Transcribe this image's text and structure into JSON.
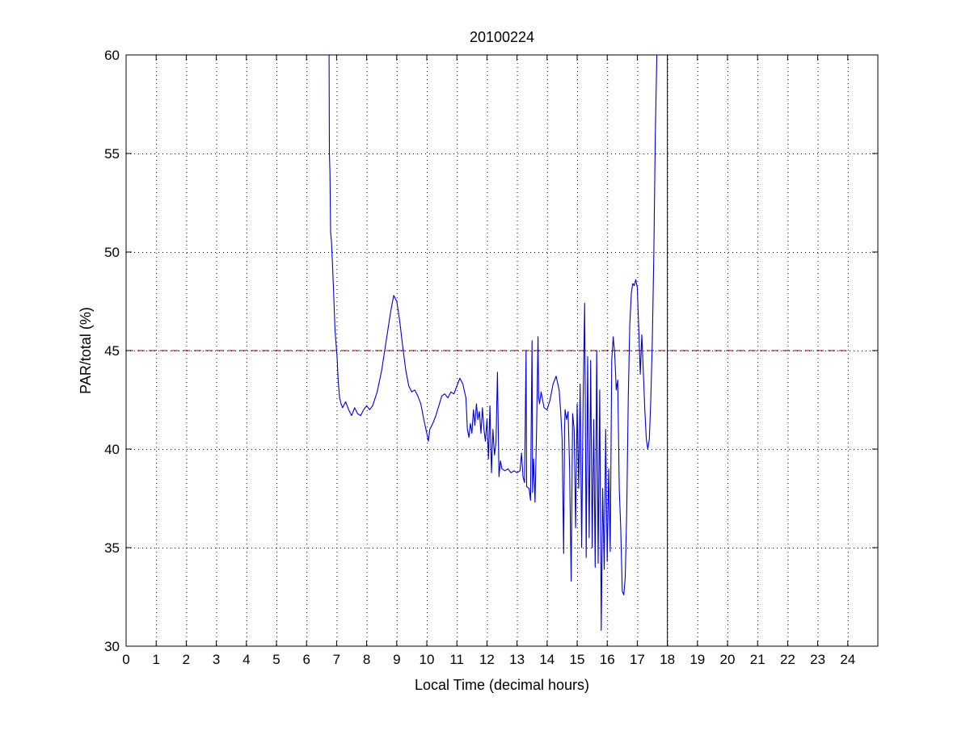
{
  "chart_data": {
    "type": "line",
    "title": "20100224",
    "xlabel": "Local Time (decimal hours)",
    "ylabel": "PAR/total (%)",
    "xlim": [
      0,
      25
    ],
    "ylim": [
      30,
      60
    ],
    "xticks": [
      0,
      1,
      2,
      3,
      4,
      5,
      6,
      7,
      8,
      9,
      10,
      11,
      12,
      13,
      14,
      15,
      16,
      17,
      18,
      19,
      20,
      21,
      22,
      23,
      24
    ],
    "yticks": [
      30,
      35,
      40,
      45,
      50,
      55,
      60
    ],
    "grid": true,
    "grid_style": "dotted",
    "reference_line": {
      "y": 45,
      "x_range": [
        0,
        24
      ],
      "color": "#a00000",
      "style": "dashed"
    },
    "colors": {
      "series": "#0000d0",
      "reference": "#a00000",
      "axes": "#000000",
      "grid": "#000000"
    },
    "series": [
      {
        "color": "#0000d0",
        "points": [
          [
            6.75,
            60.0
          ],
          [
            6.76,
            55.0
          ],
          [
            6.78,
            54.0
          ],
          [
            6.8,
            51.0
          ],
          [
            6.83,
            50.5
          ],
          [
            6.86,
            49.5
          ],
          [
            6.9,
            48.0
          ],
          [
            6.95,
            46.0
          ],
          [
            7.0,
            45.0
          ],
          [
            7.02,
            44.6
          ],
          [
            7.05,
            43.5
          ],
          [
            7.1,
            42.6
          ],
          [
            7.15,
            42.3
          ],
          [
            7.2,
            42.1
          ],
          [
            7.3,
            42.4
          ],
          [
            7.4,
            42.0
          ],
          [
            7.5,
            41.7
          ],
          [
            7.6,
            42.1
          ],
          [
            7.7,
            41.8
          ],
          [
            7.8,
            41.7
          ],
          [
            7.9,
            42.0
          ],
          [
            8.0,
            42.2
          ],
          [
            8.1,
            42.0
          ],
          [
            8.2,
            42.2
          ],
          [
            8.35,
            42.9
          ],
          [
            8.5,
            44.0
          ],
          [
            8.65,
            45.5
          ],
          [
            8.8,
            47.0
          ],
          [
            8.9,
            47.8
          ],
          [
            9.0,
            47.5
          ],
          [
            9.1,
            46.5
          ],
          [
            9.2,
            45.2
          ],
          [
            9.3,
            44.0
          ],
          [
            9.4,
            43.2
          ],
          [
            9.5,
            42.9
          ],
          [
            9.6,
            43.0
          ],
          [
            9.7,
            42.7
          ],
          [
            9.8,
            42.3
          ],
          [
            9.9,
            41.5
          ],
          [
            10.0,
            40.8
          ],
          [
            10.05,
            40.4
          ],
          [
            10.1,
            41.0
          ],
          [
            10.2,
            41.3
          ],
          [
            10.3,
            41.7
          ],
          [
            10.4,
            42.2
          ],
          [
            10.5,
            42.7
          ],
          [
            10.6,
            42.8
          ],
          [
            10.7,
            42.6
          ],
          [
            10.8,
            42.9
          ],
          [
            10.9,
            42.8
          ],
          [
            11.0,
            43.2
          ],
          [
            11.1,
            43.6
          ],
          [
            11.2,
            43.3
          ],
          [
            11.3,
            42.6
          ],
          [
            11.35,
            41.0
          ],
          [
            11.4,
            40.6
          ],
          [
            11.45,
            41.3
          ],
          [
            11.5,
            40.8
          ],
          [
            11.55,
            42.0
          ],
          [
            11.6,
            41.2
          ],
          [
            11.65,
            42.3
          ],
          [
            11.7,
            41.5
          ],
          [
            11.75,
            41.9
          ],
          [
            11.8,
            40.8
          ],
          [
            11.85,
            42.1
          ],
          [
            11.9,
            41.0
          ],
          [
            11.95,
            40.4
          ],
          [
            12.0,
            41.5
          ],
          [
            12.05,
            39.5
          ],
          [
            12.1,
            42.2
          ],
          [
            12.15,
            38.8
          ],
          [
            12.2,
            41.0
          ],
          [
            12.25,
            39.7
          ],
          [
            12.3,
            40.3
          ],
          [
            12.35,
            43.9
          ],
          [
            12.4,
            38.6
          ],
          [
            12.45,
            39.4
          ],
          [
            12.5,
            39.0
          ],
          [
            12.6,
            38.9
          ],
          [
            12.7,
            39.0
          ],
          [
            12.8,
            38.8
          ],
          [
            12.9,
            38.9
          ],
          [
            13.0,
            38.8
          ],
          [
            13.1,
            38.9
          ],
          [
            13.15,
            39.8
          ],
          [
            13.2,
            38.6
          ],
          [
            13.25,
            38.3
          ],
          [
            13.3,
            45.0
          ],
          [
            13.32,
            38.1
          ],
          [
            13.4,
            38.0
          ],
          [
            13.45,
            37.4
          ],
          [
            13.5,
            45.5
          ],
          [
            13.52,
            37.8
          ],
          [
            13.55,
            39.5
          ],
          [
            13.6,
            37.3
          ],
          [
            13.65,
            41.0
          ],
          [
            13.7,
            45.7
          ],
          [
            13.72,
            42.6
          ],
          [
            13.75,
            42.3
          ],
          [
            13.8,
            42.9
          ],
          [
            13.9,
            42.1
          ],
          [
            14.0,
            42.0
          ],
          [
            14.1,
            42.5
          ],
          [
            14.2,
            43.3
          ],
          [
            14.3,
            43.7
          ],
          [
            14.4,
            43.0
          ],
          [
            14.45,
            42.0
          ],
          [
            14.5,
            40.5
          ],
          [
            14.55,
            34.7
          ],
          [
            14.58,
            41.0
          ],
          [
            14.6,
            42.0
          ],
          [
            14.65,
            41.5
          ],
          [
            14.7,
            41.9
          ],
          [
            14.75,
            39.0
          ],
          [
            14.8,
            33.3
          ],
          [
            14.85,
            41.8
          ],
          [
            14.9,
            41.0
          ],
          [
            14.95,
            36.0
          ],
          [
            15.0,
            42.3
          ],
          [
            15.05,
            38.0
          ],
          [
            15.1,
            43.3
          ],
          [
            15.15,
            35.0
          ],
          [
            15.2,
            42.5
          ],
          [
            15.25,
            47.4
          ],
          [
            15.3,
            34.5
          ],
          [
            15.35,
            44.7
          ],
          [
            15.4,
            35.5
          ],
          [
            15.45,
            44.5
          ],
          [
            15.5,
            35.0
          ],
          [
            15.55,
            41.5
          ],
          [
            15.6,
            34.0
          ],
          [
            15.65,
            45.0
          ],
          [
            15.7,
            34.2
          ],
          [
            15.75,
            43.0
          ],
          [
            15.8,
            30.8
          ],
          [
            15.85,
            38.0
          ],
          [
            15.9,
            33.9
          ],
          [
            15.95,
            41.0
          ],
          [
            16.0,
            34.3
          ],
          [
            16.05,
            39.0
          ],
          [
            16.1,
            34.8
          ],
          [
            16.15,
            44.5
          ],
          [
            16.2,
            45.7
          ],
          [
            16.25,
            44.8
          ],
          [
            16.3,
            43.0
          ],
          [
            16.35,
            43.5
          ],
          [
            16.4,
            38.0
          ],
          [
            16.45,
            36.0
          ],
          [
            16.5,
            32.8
          ],
          [
            16.55,
            32.6
          ],
          [
            16.6,
            33.5
          ],
          [
            16.65,
            37.0
          ],
          [
            16.7,
            42.5
          ],
          [
            16.75,
            46.3
          ],
          [
            16.8,
            47.9
          ],
          [
            16.85,
            48.4
          ],
          [
            16.9,
            48.3
          ],
          [
            16.95,
            48.6
          ],
          [
            17.0,
            48.2
          ],
          [
            17.05,
            46.0
          ],
          [
            17.1,
            43.8
          ],
          [
            17.15,
            45.8
          ],
          [
            17.2,
            44.0
          ],
          [
            17.25,
            42.0
          ],
          [
            17.3,
            40.5
          ],
          [
            17.35,
            40.0
          ],
          [
            17.4,
            40.5
          ],
          [
            17.45,
            42.5
          ],
          [
            17.5,
            45.5
          ],
          [
            17.55,
            50.0
          ],
          [
            17.6,
            56.0
          ],
          [
            17.65,
            60.0
          ]
        ]
      },
      {
        "color": "#0000d0",
        "points": [
          [
            18.0,
            60.0
          ],
          [
            18.0,
            30.0
          ]
        ]
      }
    ]
  }
}
